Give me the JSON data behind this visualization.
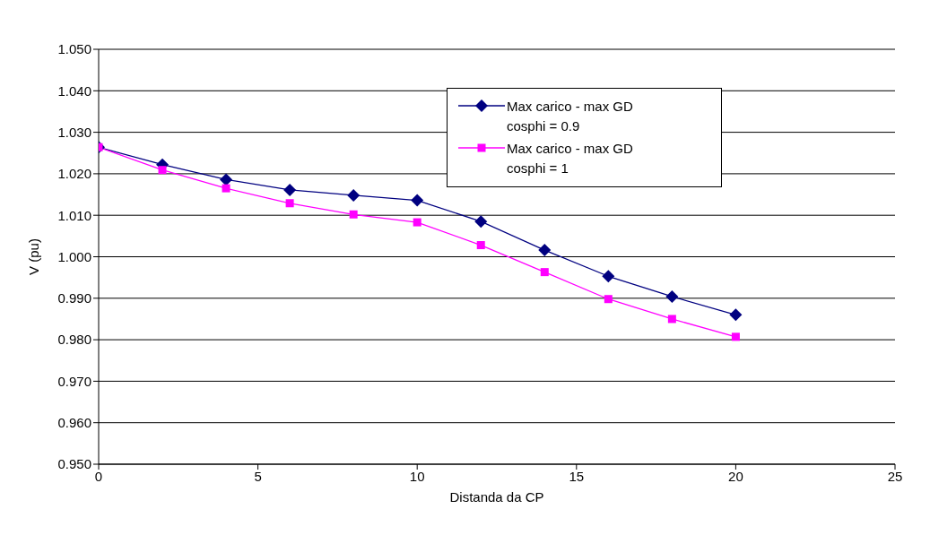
{
  "chart_data": {
    "type": "line",
    "xlabel": "Distanda da CP",
    "ylabel": "V (pu)",
    "x": [
      0,
      2,
      4,
      6,
      8,
      10,
      12,
      14,
      16,
      18,
      20
    ],
    "series": [
      {
        "name": "Max carico - max GD cosphi = 0.9",
        "color": "#000080",
        "marker": "diamond",
        "values": [
          1.0264,
          1.0222,
          1.0186,
          1.0161,
          1.0148,
          1.0136,
          1.0085,
          1.0016,
          0.9953,
          0.9904,
          0.986
        ]
      },
      {
        "name": "Max carico - max GD cosphi = 1",
        "color": "#ff00ff",
        "marker": "square",
        "values": [
          1.0264,
          1.0209,
          1.0165,
          1.0129,
          1.0102,
          1.0083,
          1.0028,
          0.9963,
          0.9898,
          0.985,
          0.9807
        ]
      }
    ],
    "xlim": [
      0,
      25
    ],
    "xticks": [
      0,
      5,
      10,
      15,
      20,
      25
    ],
    "ylim": [
      0.95,
      1.05
    ],
    "yticks": [
      {
        "value": 0.95,
        "label": "0.950"
      },
      {
        "value": 0.96,
        "label": "0.960"
      },
      {
        "value": 0.97,
        "label": "0.970"
      },
      {
        "value": 0.98,
        "label": "0.980"
      },
      {
        "value": 0.99,
        "label": "0.990"
      },
      {
        "value": 1.0,
        "label": "1.000"
      },
      {
        "value": 1.01,
        "label": "1.010"
      },
      {
        "value": 1.02,
        "label": "1.020"
      },
      {
        "value": 1.03,
        "label": "1.030"
      },
      {
        "value": 1.04,
        "label": "1.040"
      },
      {
        "value": 1.05,
        "label": "1.050"
      }
    ],
    "grid": "y",
    "legend": "top right",
    "line_style": "solid"
  }
}
